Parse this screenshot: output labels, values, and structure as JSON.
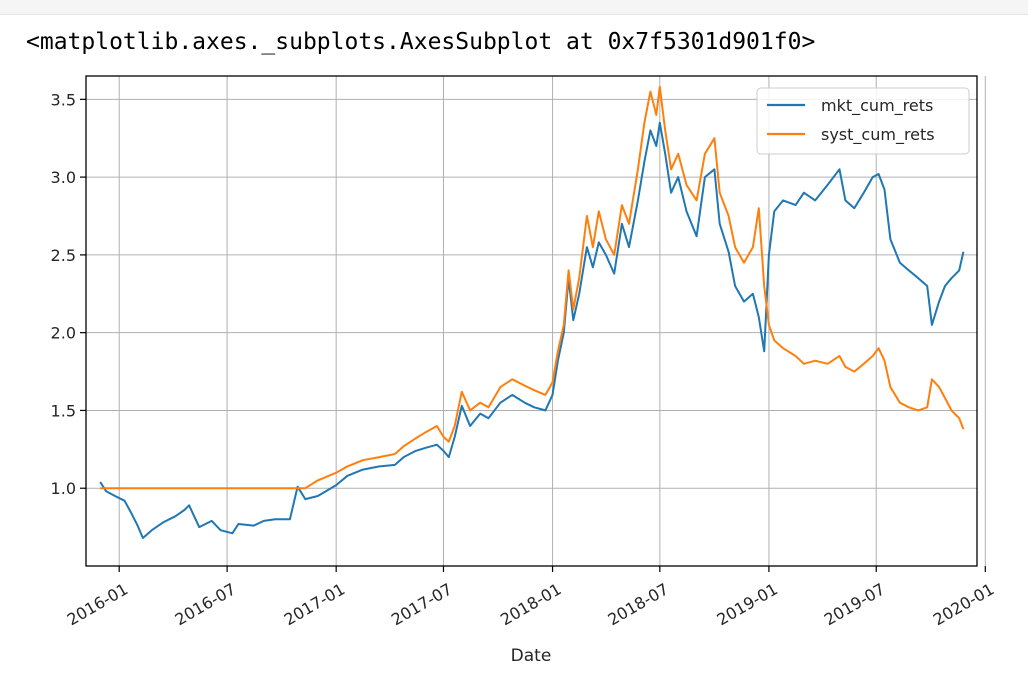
{
  "output": {
    "repr_text": "<matplotlib.axes._subplots.AxesSubplot at 0x7f5301d901f0>"
  },
  "chart_data": {
    "type": "line",
    "xlabel": "Date",
    "ylabel": "",
    "xlim": [
      "2015-11-06",
      "2019-12-18"
    ],
    "ylim": [
      0.5,
      3.65
    ],
    "x_ticks": [
      "2016-01",
      "2016-07",
      "2017-01",
      "2017-07",
      "2018-01",
      "2018-07",
      "2019-01",
      "2019-07",
      "2020-01"
    ],
    "y_ticks": [
      "1.0",
      "1.5",
      "2.0",
      "2.5",
      "3.0",
      "3.5"
    ],
    "grid": true,
    "legend_position": "top-right",
    "series": [
      {
        "name": "mkt_cum_rets",
        "color": "#1f77b4",
        "points": [
          [
            "2015-11-30",
            1.04
          ],
          [
            "2015-12-10",
            0.98
          ],
          [
            "2015-12-25",
            0.95
          ],
          [
            "2016-01-10",
            0.92
          ],
          [
            "2016-01-20",
            0.85
          ],
          [
            "2016-02-01",
            0.76
          ],
          [
            "2016-02-10",
            0.68
          ],
          [
            "2016-02-25",
            0.73
          ],
          [
            "2016-03-15",
            0.78
          ],
          [
            "2016-04-05",
            0.82
          ],
          [
            "2016-04-20",
            0.86
          ],
          [
            "2016-04-28",
            0.89
          ],
          [
            "2016-05-15",
            0.75
          ],
          [
            "2016-06-05",
            0.79
          ],
          [
            "2016-06-20",
            0.73
          ],
          [
            "2016-07-10",
            0.71
          ],
          [
            "2016-07-20",
            0.77
          ],
          [
            "2016-08-15",
            0.76
          ],
          [
            "2016-09-01",
            0.79
          ],
          [
            "2016-09-20",
            0.8
          ],
          [
            "2016-10-15",
            0.8
          ],
          [
            "2016-10-28",
            1.01
          ],
          [
            "2016-11-10",
            0.93
          ],
          [
            "2016-12-01",
            0.95
          ],
          [
            "2017-01-01",
            1.02
          ],
          [
            "2017-01-20",
            1.08
          ],
          [
            "2017-02-15",
            1.12
          ],
          [
            "2017-03-15",
            1.14
          ],
          [
            "2017-04-10",
            1.15
          ],
          [
            "2017-04-25",
            1.2
          ],
          [
            "2017-05-15",
            1.24
          ],
          [
            "2017-06-01",
            1.26
          ],
          [
            "2017-06-20",
            1.28
          ],
          [
            "2017-07-01",
            1.24
          ],
          [
            "2017-07-10",
            1.2
          ],
          [
            "2017-07-20",
            1.33
          ],
          [
            "2017-08-01",
            1.53
          ],
          [
            "2017-08-15",
            1.4
          ],
          [
            "2017-09-01",
            1.48
          ],
          [
            "2017-09-15",
            1.45
          ],
          [
            "2017-10-05",
            1.55
          ],
          [
            "2017-10-25",
            1.6
          ],
          [
            "2017-11-15",
            1.55
          ],
          [
            "2017-12-01",
            1.52
          ],
          [
            "2017-12-20",
            1.5
          ],
          [
            "2018-01-01",
            1.6
          ],
          [
            "2018-01-10",
            1.82
          ],
          [
            "2018-01-20",
            2.0
          ],
          [
            "2018-01-28",
            2.35
          ],
          [
            "2018-02-05",
            2.08
          ],
          [
            "2018-02-15",
            2.25
          ],
          [
            "2018-02-28",
            2.55
          ],
          [
            "2018-03-10",
            2.42
          ],
          [
            "2018-03-20",
            2.58
          ],
          [
            "2018-04-01",
            2.5
          ],
          [
            "2018-04-15",
            2.38
          ],
          [
            "2018-04-28",
            2.7
          ],
          [
            "2018-05-10",
            2.55
          ],
          [
            "2018-05-25",
            2.85
          ],
          [
            "2018-06-05",
            3.1
          ],
          [
            "2018-06-15",
            3.3
          ],
          [
            "2018-06-25",
            3.2
          ],
          [
            "2018-07-01",
            3.35
          ],
          [
            "2018-07-10",
            3.15
          ],
          [
            "2018-07-20",
            2.9
          ],
          [
            "2018-08-01",
            3.0
          ],
          [
            "2018-08-15",
            2.78
          ],
          [
            "2018-09-01",
            2.62
          ],
          [
            "2018-09-15",
            3.0
          ],
          [
            "2018-10-01",
            3.05
          ],
          [
            "2018-10-10",
            2.7
          ],
          [
            "2018-10-25",
            2.52
          ],
          [
            "2018-11-05",
            2.3
          ],
          [
            "2018-11-20",
            2.2
          ],
          [
            "2018-12-05",
            2.25
          ],
          [
            "2018-12-15",
            2.1
          ],
          [
            "2018-12-24",
            1.88
          ],
          [
            "2019-01-01",
            2.5
          ],
          [
            "2019-01-10",
            2.78
          ],
          [
            "2019-01-25",
            2.85
          ],
          [
            "2019-02-15",
            2.82
          ],
          [
            "2019-03-01",
            2.9
          ],
          [
            "2019-03-20",
            2.85
          ],
          [
            "2019-04-10",
            2.95
          ],
          [
            "2019-04-30",
            3.05
          ],
          [
            "2019-05-10",
            2.85
          ],
          [
            "2019-05-25",
            2.8
          ],
          [
            "2019-06-10",
            2.9
          ],
          [
            "2019-06-25",
            3.0
          ],
          [
            "2019-07-05",
            3.02
          ],
          [
            "2019-07-15",
            2.92
          ],
          [
            "2019-07-25",
            2.6
          ],
          [
            "2019-08-10",
            2.45
          ],
          [
            "2019-08-25",
            2.4
          ],
          [
            "2019-09-10",
            2.35
          ],
          [
            "2019-09-25",
            2.3
          ],
          [
            "2019-10-03",
            2.05
          ],
          [
            "2019-10-15",
            2.2
          ],
          [
            "2019-10-25",
            2.3
          ],
          [
            "2019-11-05",
            2.35
          ],
          [
            "2019-11-18",
            2.4
          ],
          [
            "2019-11-25",
            2.52
          ]
        ]
      },
      {
        "name": "syst_cum_rets",
        "color": "#ff7f0e",
        "points": [
          [
            "2015-11-30",
            1.0
          ],
          [
            "2016-07-01",
            1.0
          ],
          [
            "2016-10-28",
            1.0
          ],
          [
            "2016-11-10",
            1.0
          ],
          [
            "2016-12-01",
            1.05
          ],
          [
            "2017-01-01",
            1.1
          ],
          [
            "2017-01-20",
            1.14
          ],
          [
            "2017-02-15",
            1.18
          ],
          [
            "2017-03-15",
            1.2
          ],
          [
            "2017-04-10",
            1.22
          ],
          [
            "2017-04-25",
            1.27
          ],
          [
            "2017-05-15",
            1.32
          ],
          [
            "2017-06-01",
            1.36
          ],
          [
            "2017-06-20",
            1.4
          ],
          [
            "2017-07-01",
            1.33
          ],
          [
            "2017-07-10",
            1.3
          ],
          [
            "2017-07-20",
            1.4
          ],
          [
            "2017-08-01",
            1.62
          ],
          [
            "2017-08-15",
            1.5
          ],
          [
            "2017-09-01",
            1.55
          ],
          [
            "2017-09-15",
            1.52
          ],
          [
            "2017-10-05",
            1.65
          ],
          [
            "2017-10-25",
            1.7
          ],
          [
            "2017-11-15",
            1.66
          ],
          [
            "2017-12-01",
            1.63
          ],
          [
            "2017-12-20",
            1.6
          ],
          [
            "2018-01-01",
            1.68
          ],
          [
            "2018-01-10",
            1.88
          ],
          [
            "2018-01-20",
            2.05
          ],
          [
            "2018-01-28",
            2.4
          ],
          [
            "2018-02-05",
            2.15
          ],
          [
            "2018-02-15",
            2.35
          ],
          [
            "2018-02-28",
            2.75
          ],
          [
            "2018-03-10",
            2.55
          ],
          [
            "2018-03-20",
            2.78
          ],
          [
            "2018-04-01",
            2.6
          ],
          [
            "2018-04-15",
            2.5
          ],
          [
            "2018-04-28",
            2.82
          ],
          [
            "2018-05-10",
            2.7
          ],
          [
            "2018-05-25",
            3.05
          ],
          [
            "2018-06-05",
            3.35
          ],
          [
            "2018-06-15",
            3.55
          ],
          [
            "2018-06-25",
            3.4
          ],
          [
            "2018-07-01",
            3.58
          ],
          [
            "2018-07-10",
            3.3
          ],
          [
            "2018-07-20",
            3.05
          ],
          [
            "2018-08-01",
            3.15
          ],
          [
            "2018-08-15",
            2.95
          ],
          [
            "2018-09-01",
            2.85
          ],
          [
            "2018-09-15",
            3.15
          ],
          [
            "2018-10-01",
            3.25
          ],
          [
            "2018-10-10",
            2.9
          ],
          [
            "2018-10-25",
            2.75
          ],
          [
            "2018-11-05",
            2.55
          ],
          [
            "2018-11-20",
            2.45
          ],
          [
            "2018-12-05",
            2.55
          ],
          [
            "2018-12-15",
            2.8
          ],
          [
            "2018-12-24",
            2.3
          ],
          [
            "2019-01-01",
            2.05
          ],
          [
            "2019-01-10",
            1.95
          ],
          [
            "2019-01-25",
            1.9
          ],
          [
            "2019-02-15",
            1.85
          ],
          [
            "2019-03-01",
            1.8
          ],
          [
            "2019-03-20",
            1.82
          ],
          [
            "2019-04-10",
            1.8
          ],
          [
            "2019-04-30",
            1.85
          ],
          [
            "2019-05-10",
            1.78
          ],
          [
            "2019-05-25",
            1.75
          ],
          [
            "2019-06-10",
            1.8
          ],
          [
            "2019-06-25",
            1.85
          ],
          [
            "2019-07-05",
            1.9
          ],
          [
            "2019-07-15",
            1.82
          ],
          [
            "2019-07-25",
            1.65
          ],
          [
            "2019-08-10",
            1.55
          ],
          [
            "2019-08-25",
            1.52
          ],
          [
            "2019-09-10",
            1.5
          ],
          [
            "2019-09-25",
            1.52
          ],
          [
            "2019-10-03",
            1.7
          ],
          [
            "2019-10-15",
            1.65
          ],
          [
            "2019-10-25",
            1.58
          ],
          [
            "2019-11-05",
            1.5
          ],
          [
            "2019-11-18",
            1.45
          ],
          [
            "2019-11-25",
            1.38
          ]
        ]
      }
    ]
  }
}
